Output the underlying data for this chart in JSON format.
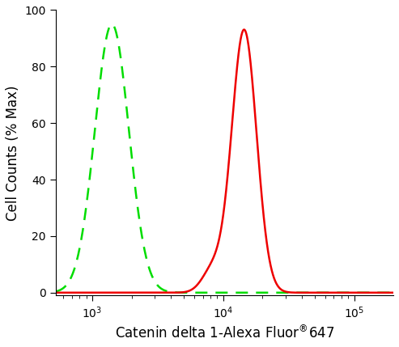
{
  "title": "",
  "xlabel": "Catenin delta 1-Alexa Fluor®647",
  "ylabel": "Cell Counts (% Max)",
  "xlim_log": [
    2.72,
    5.3
  ],
  "ylim": [
    -1,
    100
  ],
  "yticks": [
    0,
    20,
    40,
    60,
    80,
    100
  ],
  "green_peak_log": 3.15,
  "green_peak_height": 95,
  "green_sigma_log": 0.13,
  "red_peak_log": 4.16,
  "red_peak_height": 93,
  "red_sigma_log": 0.095,
  "red_shoulder_log": 3.92,
  "red_shoulder_height": 8,
  "red_shoulder_sigma": 0.08,
  "green_color": "#00dd00",
  "red_color": "#ee0000",
  "background_color": "#ffffff",
  "axis_background": "#ffffff",
  "fontsize_label": 12,
  "fontsize_tick": 10,
  "line_width": 1.8
}
